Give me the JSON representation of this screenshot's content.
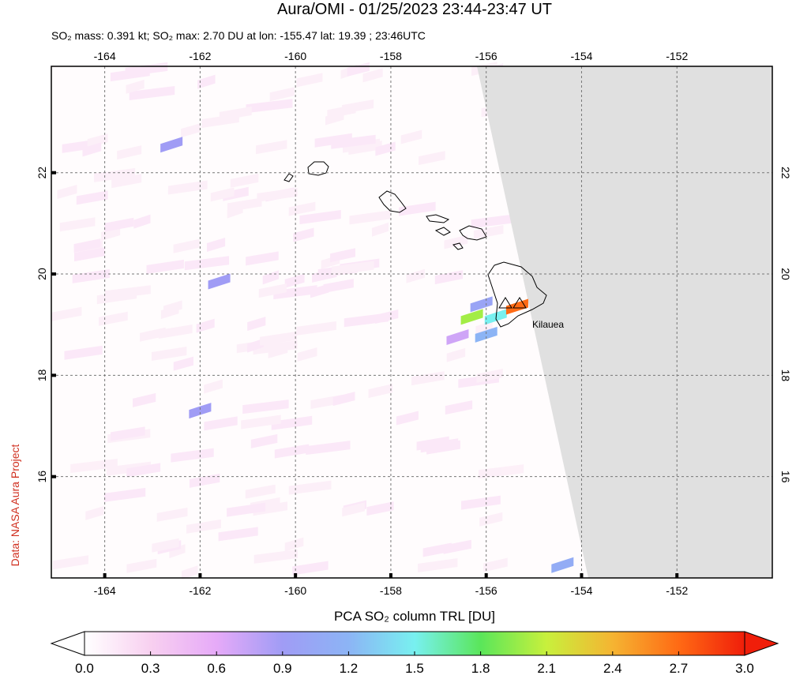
{
  "chart_data": {
    "type": "map",
    "title": "Aura/OMI - 01/25/2023 23:44-23:47 UT",
    "subtitle": "SO₂ mass: 0.391 kt; SO₂ max: 2.70 DU at lon: -155.47 lat: 19.39 ; 23:46UTC",
    "credit": "Data: NASA Aura Project",
    "annotation": "Kilauea",
    "xlim": [
      -165.12,
      -150.0
    ],
    "ylim": [
      14.0,
      24.1
    ],
    "xticks": [
      -164,
      -162,
      -160,
      -158,
      -156,
      -154,
      -152
    ],
    "yticks": [
      16,
      18,
      20,
      22
    ],
    "grid": true,
    "colorbar": {
      "label": "PCA SO₂ column TRL [DU]",
      "lim": [
        0,
        3
      ],
      "ticks": [
        {
          "value": 0,
          "label": "0.0"
        },
        {
          "value": 0.3,
          "label": "0.3"
        },
        {
          "value": 0.6,
          "label": "0.6"
        },
        {
          "value": 0.9,
          "label": "0.9"
        },
        {
          "value": 1.2,
          "label": "1.2"
        },
        {
          "value": 1.5,
          "label": "1.5"
        },
        {
          "value": 1.8,
          "label": "1.8"
        },
        {
          "value": 2.1,
          "label": "2.1"
        },
        {
          "value": 2.4,
          "label": "2.4"
        },
        {
          "value": 2.7,
          "label": "2.7"
        },
        {
          "value": 3.0,
          "label": "3.0"
        }
      ],
      "colors": [
        "#ffffff",
        "#f8d0f0",
        "#e6aaf8",
        "#a09cf5",
        "#8cb4f5",
        "#78f0f0",
        "#5ae65a",
        "#c8f03c",
        "#f5b432",
        "#ff6a14",
        "#f01e0a"
      ]
    },
    "pixels": {
      "lon": [
        -156.3,
        -156.0,
        -155.8,
        -155.35,
        -156.6,
        -156.1,
        -162.0,
        -162.6,
        -161.6,
        -154.4
      ],
      "lat": [
        19.2,
        18.85,
        19.2,
        19.4,
        18.8,
        19.45,
        17.35,
        22.6,
        19.9,
        14.3
      ],
      "values": [
        2.0,
        1.2,
        1.5,
        2.7,
        0.7,
        1.0,
        0.9,
        0.9,
        0.9,
        1.1
      ]
    }
  }
}
